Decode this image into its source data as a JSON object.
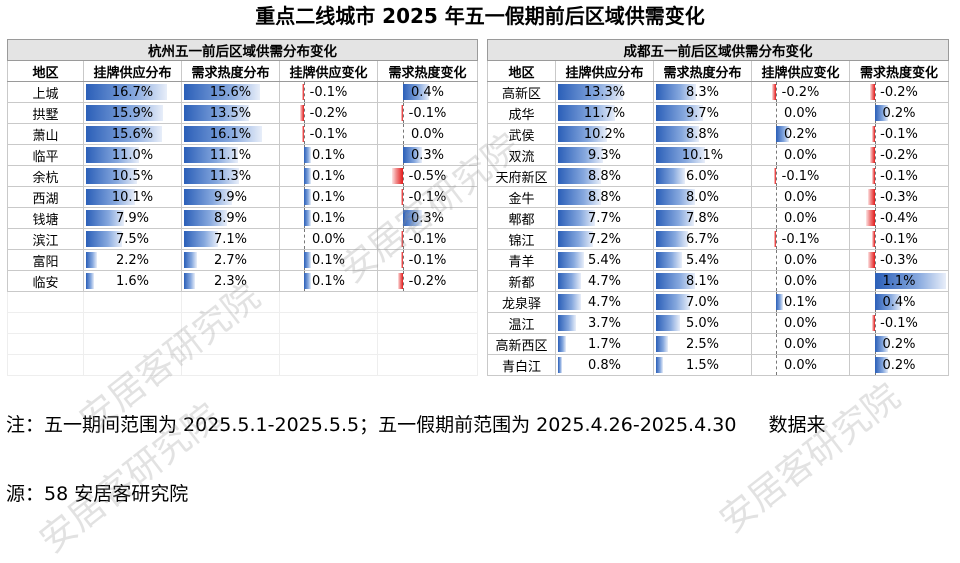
{
  "title": "重点二线城市 2025 年五一假期前后区域供需变化",
  "chart_data": [
    {
      "type": "table",
      "caption": "杭州五一前后区域供需分布变化",
      "headers": [
        "地区",
        "挂牌供应分布",
        "需求热度分布",
        "挂牌供应变化",
        "需求热度变化"
      ],
      "rows": [
        {
          "region": "上城",
          "supply": 16.7,
          "demand": 15.6,
          "supply_chg": -0.1,
          "demand_chg": 0.4
        },
        {
          "region": "拱墅",
          "supply": 15.9,
          "demand": 13.5,
          "supply_chg": -0.2,
          "demand_chg": -0.1
        },
        {
          "region": "萧山",
          "supply": 15.6,
          "demand": 16.1,
          "supply_chg": -0.1,
          "demand_chg": 0.0
        },
        {
          "region": "临平",
          "supply": 11.0,
          "demand": 11.1,
          "supply_chg": 0.1,
          "demand_chg": 0.3
        },
        {
          "region": "余杭",
          "supply": 10.5,
          "demand": 11.3,
          "supply_chg": 0.1,
          "demand_chg": -0.5
        },
        {
          "region": "西湖",
          "supply": 10.1,
          "demand": 9.9,
          "supply_chg": 0.1,
          "demand_chg": -0.1
        },
        {
          "region": "钱塘",
          "supply": 7.9,
          "demand": 8.9,
          "supply_chg": 0.1,
          "demand_chg": 0.3
        },
        {
          "region": "滨江",
          "supply": 7.5,
          "demand": 7.1,
          "supply_chg": 0.0,
          "demand_chg": -0.1
        },
        {
          "region": "富阳",
          "supply": 2.2,
          "demand": 2.7,
          "supply_chg": 0.1,
          "demand_chg": -0.1
        },
        {
          "region": "临安",
          "supply": 1.6,
          "demand": 2.3,
          "supply_chg": 0.1,
          "demand_chg": -0.2
        }
      ],
      "empty_rows": 4
    },
    {
      "type": "table",
      "caption": "成都五一前后区域供需分布变化",
      "headers": [
        "地区",
        "挂牌供应分布",
        "需求热度分布",
        "挂牌供应变化",
        "需求热度变化"
      ],
      "rows": [
        {
          "region": "高新区",
          "supply": 13.3,
          "demand": 8.3,
          "supply_chg": -0.2,
          "demand_chg": -0.2
        },
        {
          "region": "成华",
          "supply": 11.7,
          "demand": 9.7,
          "supply_chg": 0.0,
          "demand_chg": 0.2
        },
        {
          "region": "武侯",
          "supply": 10.2,
          "demand": 8.8,
          "supply_chg": 0.2,
          "demand_chg": -0.1
        },
        {
          "region": "双流",
          "supply": 9.3,
          "demand": 10.1,
          "supply_chg": 0.0,
          "demand_chg": -0.2
        },
        {
          "region": "天府新区",
          "supply": 8.8,
          "demand": 6.0,
          "supply_chg": -0.1,
          "demand_chg": -0.1
        },
        {
          "region": "金牛",
          "supply": 8.8,
          "demand": 8.0,
          "supply_chg": 0.0,
          "demand_chg": -0.3
        },
        {
          "region": "郫都",
          "supply": 7.7,
          "demand": 7.8,
          "supply_chg": 0.0,
          "demand_chg": -0.4
        },
        {
          "region": "锦江",
          "supply": 7.2,
          "demand": 6.7,
          "supply_chg": -0.1,
          "demand_chg": -0.1
        },
        {
          "region": "青羊",
          "supply": 5.4,
          "demand": 5.4,
          "supply_chg": 0.0,
          "demand_chg": -0.3
        },
        {
          "region": "新都",
          "supply": 4.7,
          "demand": 8.1,
          "supply_chg": 0.0,
          "demand_chg": 1.1
        },
        {
          "region": "龙泉驿",
          "supply": 4.7,
          "demand": 7.0,
          "supply_chg": 0.1,
          "demand_chg": 0.4
        },
        {
          "region": "温江",
          "supply": 3.7,
          "demand": 5.0,
          "supply_chg": 0.0,
          "demand_chg": -0.1
        },
        {
          "region": "高新西区",
          "supply": 1.7,
          "demand": 2.5,
          "supply_chg": 0.0,
          "demand_chg": 0.2
        },
        {
          "region": "青白江",
          "supply": 0.8,
          "demand": 1.5,
          "supply_chg": 0.0,
          "demand_chg": 0.2
        }
      ],
      "empty_rows": 0
    }
  ],
  "note_line1": "注：五一期间范围为 2025.5.1-2025.5.5；五一假期前范围为 2025.4.26-2025.4.30",
  "note_line1_tail": "数据来",
  "note_line2": "源：58 安居客研究院",
  "watermark": "安居客研究院",
  "colors": {
    "bar_blue": "#2b5fb8",
    "bar_red": "#e31a1a",
    "caption_bg": "#e4e4e4"
  }
}
